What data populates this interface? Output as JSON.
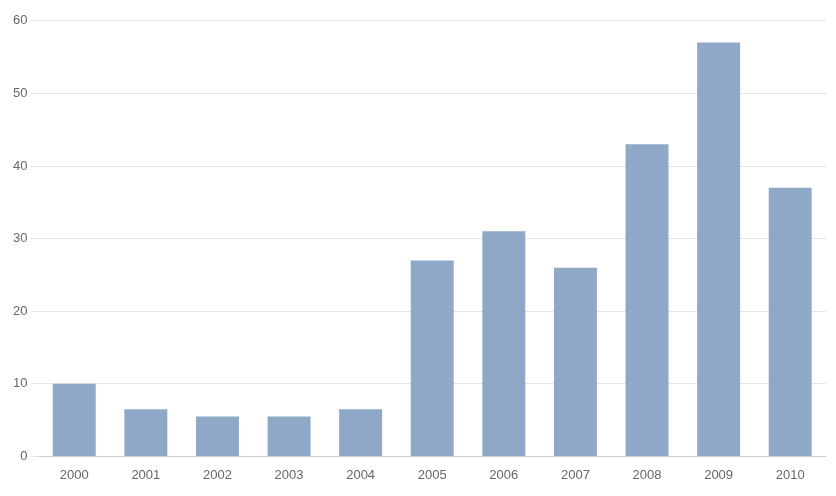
{
  "chart_data": {
    "type": "bar",
    "categories": [
      "2000",
      "2001",
      "2002",
      "2003",
      "2004",
      "2005",
      "2006",
      "2007",
      "2008",
      "2009",
      "2010"
    ],
    "values": [
      10,
      6.5,
      5.5,
      5.5,
      6.5,
      27,
      31,
      26,
      43,
      57,
      37
    ],
    "color": "#8fa8c8",
    "ylim": [
      0,
      60
    ],
    "yticks": [
      0,
      10,
      20,
      30,
      40,
      50,
      60
    ],
    "grid": true
  }
}
